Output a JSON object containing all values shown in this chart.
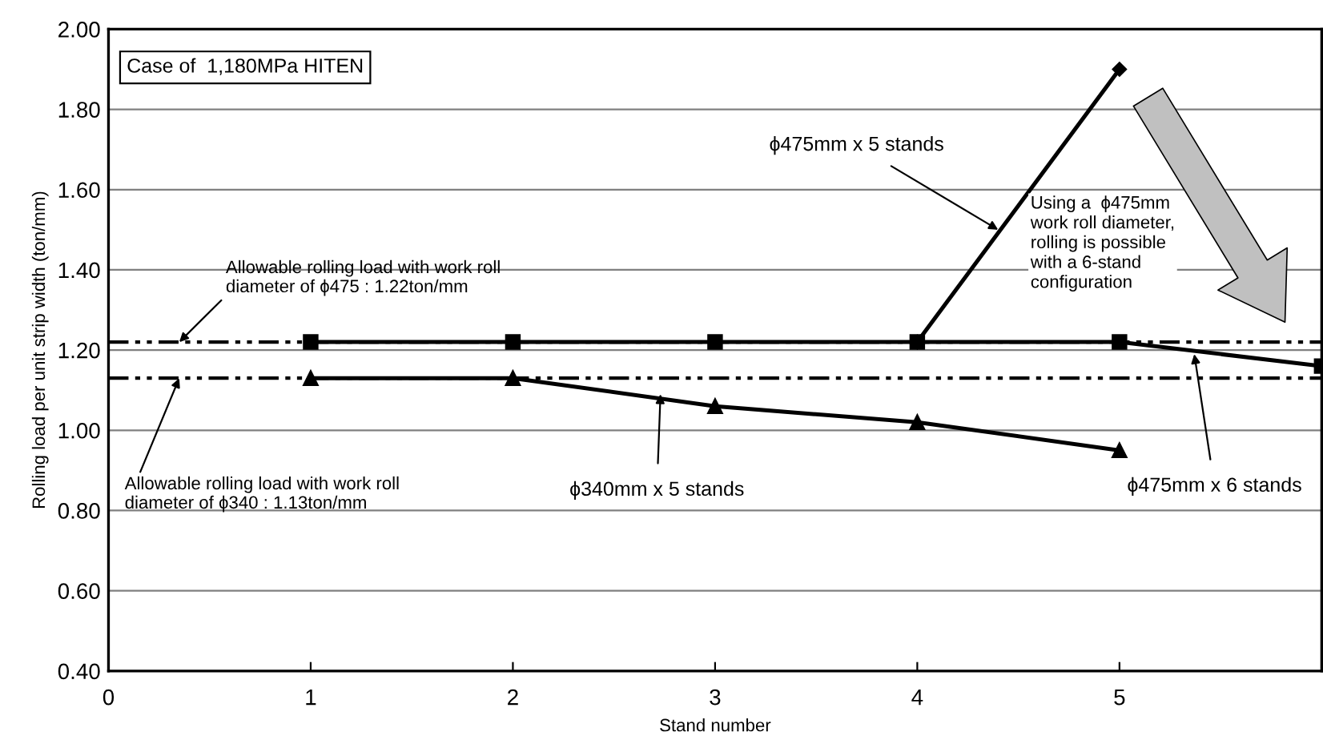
{
  "chart_data": {
    "type": "line",
    "title": "Case of  1,180MPa HITEN",
    "xlabel": "Stand number",
    "ylabel": "Rolling load per unit strip width (ton/mm)",
    "xlim": [
      0,
      6
    ],
    "xticks": [
      0,
      1,
      2,
      3,
      4,
      5
    ],
    "ylim": [
      0.4,
      2.0
    ],
    "yticks": [
      {
        "value": 0.4,
        "label": "0.40"
      },
      {
        "value": 0.6,
        "label": "0.60"
      },
      {
        "value": 0.8,
        "label": "0.80"
      },
      {
        "value": 1.0,
        "label": "1.00"
      },
      {
        "value": 1.2,
        "label": "1.20"
      },
      {
        "value": 1.4,
        "label": "1.40"
      },
      {
        "value": 1.6,
        "label": "1.60"
      },
      {
        "value": 1.8,
        "label": "1.80"
      },
      {
        "value": 2.0,
        "label": "2.00"
      }
    ],
    "grid": "y",
    "series": [
      {
        "name": "ϕ475mm x 5 stands",
        "color": "#000000",
        "marker": "diamond",
        "x": [
          4,
          5
        ],
        "values": [
          1.22,
          1.9
        ]
      },
      {
        "name": "ϕ475mm x 6 stands",
        "color": "#000000",
        "marker": "square",
        "x": [
          1,
          2,
          3,
          4,
          5,
          6
        ],
        "values": [
          1.22,
          1.22,
          1.22,
          1.22,
          1.22,
          1.16
        ]
      },
      {
        "name": "ϕ340mm x 5 stands",
        "color": "#000000",
        "marker": "triangle",
        "x": [
          1,
          2,
          3,
          4,
          5
        ],
        "values": [
          1.13,
          1.13,
          1.06,
          1.02,
          0.95
        ]
      }
    ],
    "ref_lines": [
      {
        "axis": "y",
        "value": 1.22,
        "label": "Allowable rolling load with work roll\ndiameter of ϕ475 : 1.22ton/mm",
        "color": "#000000",
        "line_style": "dashdot"
      },
      {
        "axis": "y",
        "value": 1.13,
        "label": "Allowable rolling load with work roll\ndiameter of ϕ340 : 1.13ton/mm",
        "color": "#000000",
        "line_style": "dashdot"
      }
    ],
    "annotations": [
      "Using a  ϕ475mm\nwork roll diameter,\nrolling is possible\nwith a 6-stand\nconfiguration"
    ]
  }
}
